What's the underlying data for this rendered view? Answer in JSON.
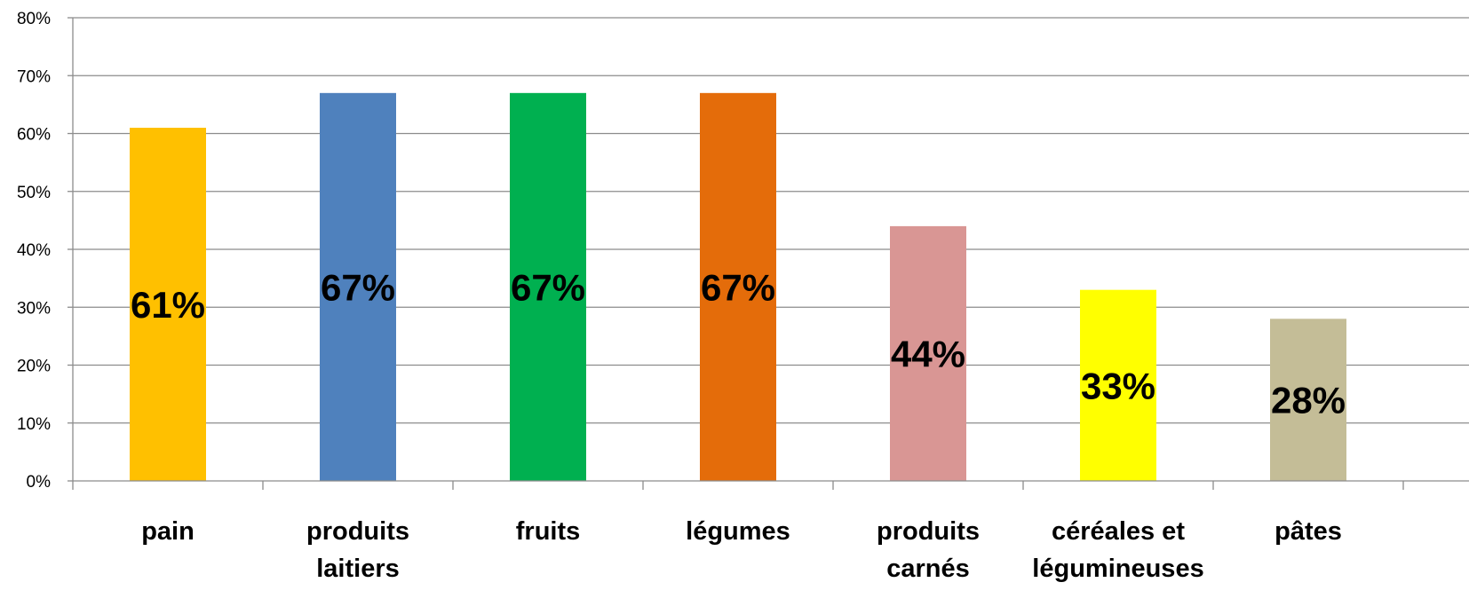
{
  "chart_data": {
    "type": "bar",
    "categories": [
      [
        "pain"
      ],
      [
        "produits",
        "laitiers"
      ],
      [
        "fruits"
      ],
      [
        "légumes"
      ],
      [
        "produits",
        "carnés"
      ],
      [
        "céréales et",
        "légumineuses"
      ],
      [
        "pâtes"
      ]
    ],
    "values": [
      61,
      67,
      67,
      67,
      44,
      33,
      28
    ],
    "data_labels": [
      "61%",
      "67%",
      "67%",
      "67%",
      "44%",
      "33%",
      "28%"
    ],
    "colors": [
      "#FFC000",
      "#4F81BD",
      "#00B050",
      "#E46C0A",
      "#D99694",
      "#FFFF00",
      "#C4BD97"
    ],
    "ylim": [
      0,
      80
    ],
    "ytick_labels": [
      "0%",
      "10%",
      "20%",
      "30%",
      "40%",
      "50%",
      "60%",
      "70%",
      "80%"
    ],
    "grid": true,
    "title": "",
    "xlabel": "",
    "ylabel": "",
    "legend": "none"
  }
}
